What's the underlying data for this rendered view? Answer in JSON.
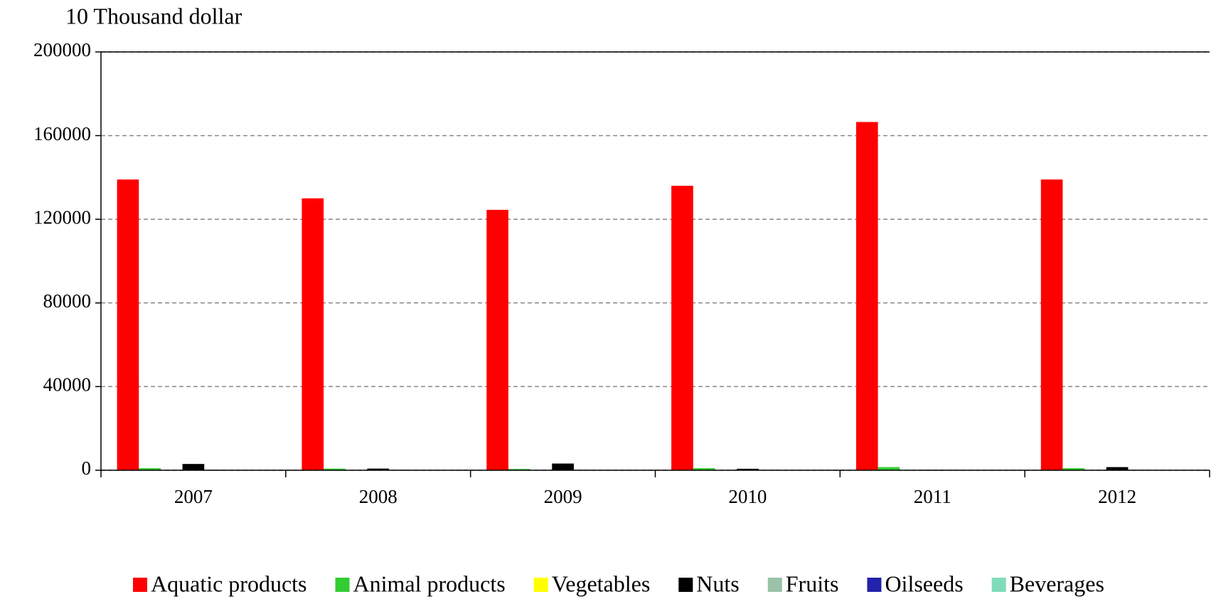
{
  "chart_data": {
    "type": "bar",
    "y_axis_label": "10 Thousand dollar",
    "categories": [
      "2007",
      "2008",
      "2009",
      "2010",
      "2011",
      "2012"
    ],
    "series": [
      {
        "name": "Aquatic products",
        "color": "#ff0000",
        "values": [
          139000,
          130000,
          124500,
          136000,
          166500,
          139000
        ]
      },
      {
        "name": "Animal products",
        "color": "#33cc33",
        "values": [
          1000,
          800,
          600,
          1000,
          1500,
          1000
        ]
      },
      {
        "name": "Vegetables",
        "color": "#ffff00",
        "values": [
          100,
          100,
          100,
          100,
          100,
          100
        ]
      },
      {
        "name": "Nuts",
        "color": "#000000",
        "values": [
          3000,
          800,
          3200,
          700,
          200,
          1500
        ]
      },
      {
        "name": "Fruits",
        "color": "#99c2a8",
        "values": [
          300,
          300,
          300,
          300,
          300,
          300
        ]
      },
      {
        "name": "Oilseeds",
        "color": "#2222aa",
        "values": [
          100,
          100,
          100,
          100,
          100,
          100
        ]
      },
      {
        "name": "Beverages",
        "color": "#80dcb8",
        "values": [
          100,
          100,
          100,
          100,
          100,
          100
        ]
      }
    ],
    "ylim": [
      0,
      200000
    ],
    "yticks": [
      0,
      40000,
      80000,
      120000,
      160000,
      200000
    ],
    "grid": true
  }
}
